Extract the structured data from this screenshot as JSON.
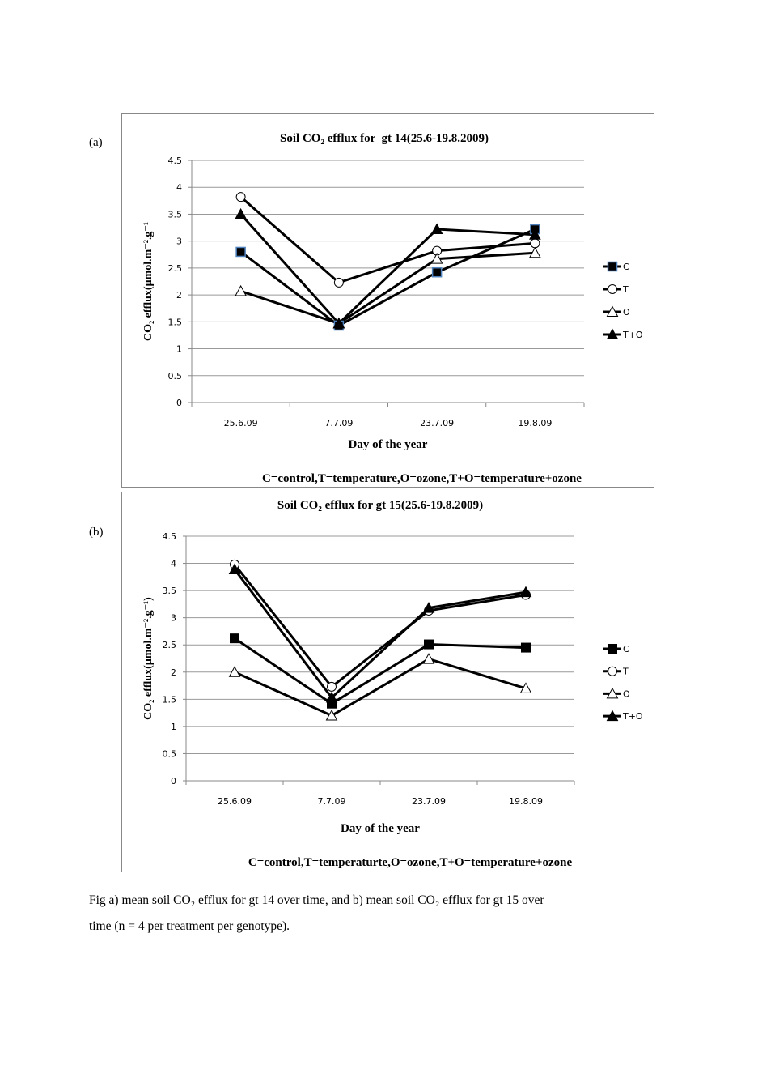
{
  "panel_labels": [
    "(a)",
    "(b)"
  ],
  "caption": {
    "line1": "Fig     a) mean soil CO₂ efflux for gt 14 over time, and b) mean soil CO₂ efflux for gt 15 over",
    "line2": "time (n = 4 per treatment per genotype)."
  },
  "chart_data": [
    {
      "type": "line",
      "title": "Soil CO₂ efflux for  gt 14(25.6-19.8.2009)",
      "xlabel": "Day of the year",
      "ylabel": "CO₂ efflux(µmol.m⁻².g⁻¹",
      "footnote": "C=control,T=temperature,O=ozone,T+O=temperature+ozone",
      "categories": [
        "25.6.09",
        "7.7.09",
        "23.7.09",
        "19.8.09"
      ],
      "ylim": [
        0,
        4.5
      ],
      "yticks": [
        "0",
        "0.5",
        "1",
        "1.5",
        "2",
        "2.5",
        "3",
        "3.5",
        "4",
        "4.5"
      ],
      "grid": true,
      "legend_placement": "right",
      "series": [
        {
          "name": "C",
          "marker": "square-filled",
          "marker_edge": "#4f81bd",
          "values": [
            2.8,
            1.43,
            2.42,
            3.22
          ]
        },
        {
          "name": "T",
          "marker": "circle-open",
          "values": [
            3.82,
            2.23,
            2.82,
            2.96
          ]
        },
        {
          "name": "O",
          "marker": "triangle-open",
          "values": [
            2.07,
            1.47,
            2.67,
            2.78
          ]
        },
        {
          "name": "T+O",
          "marker": "triangle-filled",
          "values": [
            3.5,
            1.47,
            3.22,
            3.12
          ]
        }
      ]
    },
    {
      "type": "line",
      "title": "Soil CO₂ efflux for gt 15(25.6-19.8.2009)",
      "xlabel": "Day of the year",
      "ylabel": "CO₂ efflux(µmol.m⁻².g⁻¹)",
      "footnote": "C=control,T=temperaturte,O=ozone,T+O=temperature+ozone",
      "categories": [
        "25.6.09",
        "7.7.09",
        "23.7.09",
        "19.8.09"
      ],
      "ylim": [
        0,
        4.5
      ],
      "yticks": [
        "0",
        "0.5",
        "1",
        "1.5",
        "2",
        "2.5",
        "3",
        "3.5",
        "4",
        "4.5"
      ],
      "grid": true,
      "legend_placement": "right",
      "series": [
        {
          "name": "C",
          "marker": "square-filled",
          "values": [
            2.62,
            1.42,
            2.51,
            2.45
          ]
        },
        {
          "name": "T",
          "marker": "circle-open",
          "values": [
            3.98,
            1.73,
            3.13,
            3.42
          ]
        },
        {
          "name": "O",
          "marker": "triangle-open",
          "values": [
            2.0,
            1.2,
            2.24,
            1.7
          ]
        },
        {
          "name": "T+O",
          "marker": "triangle-filled",
          "values": [
            3.89,
            1.53,
            3.18,
            3.47
          ]
        }
      ]
    }
  ]
}
